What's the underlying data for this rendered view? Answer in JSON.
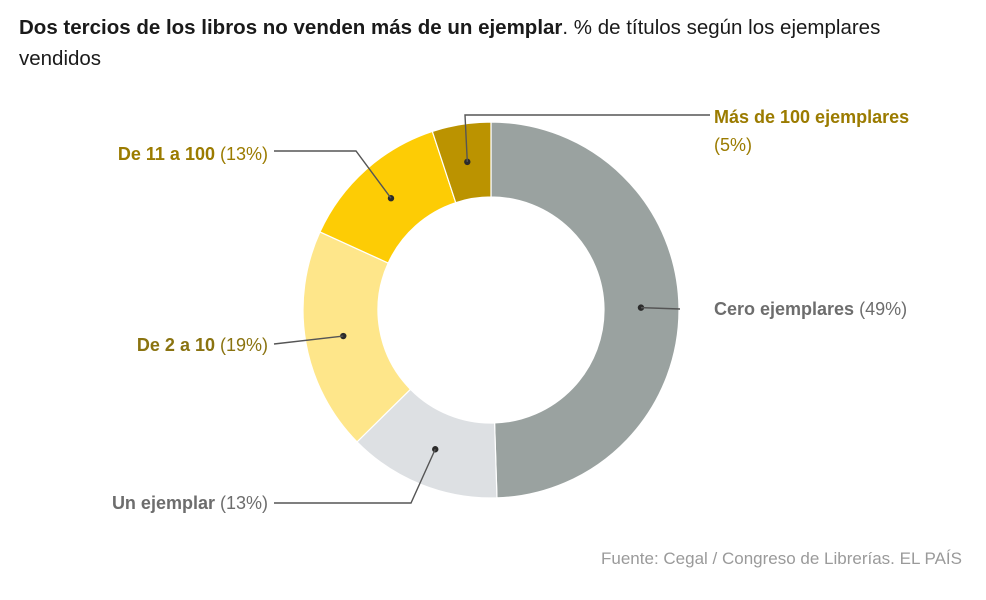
{
  "header": {
    "title_bold": "Dos tercios de los libros no venden más de un ejemplar",
    "title_rest": ". % de títulos según los ejemplares vendidos"
  },
  "chart_data": {
    "type": "pie",
    "variant": "donut",
    "title": "Dos tercios de los libros no venden más de un ejemplar",
    "subtitle": "% de títulos según los ejemplares vendidos",
    "start": "top",
    "direction": "clockwise",
    "slices": [
      {
        "name": "Cero ejemplares",
        "value": 49,
        "pct_label": "(49%)",
        "color": "#9aa2a0",
        "label_color": "#6d6d6d",
        "label_side": "right"
      },
      {
        "name": "Un ejemplar",
        "value": 13,
        "pct_label": "(13%)",
        "color": "#dde0e3",
        "label_color": "#6d6d6d",
        "label_side": "left"
      },
      {
        "name": "De 2 a 10",
        "value": 19,
        "pct_label": "(19%)",
        "color": "#fee68a",
        "label_color": "#8a7310",
        "label_side": "left"
      },
      {
        "name": "De 11 a 100",
        "value": 13,
        "pct_label": "(13%)",
        "color": "#fdcc05",
        "label_color": "#9b7b00",
        "label_side": "left"
      },
      {
        "name": "Más de 100 ejemplares",
        "value": 5,
        "pct_label": "(5%)",
        "color": "#bb9300",
        "label_color": "#9b7b00",
        "label_side": "right"
      }
    ]
  },
  "footer": {
    "source": "Fuente: Cegal / Congreso de Librerías. EL PAÍS"
  }
}
